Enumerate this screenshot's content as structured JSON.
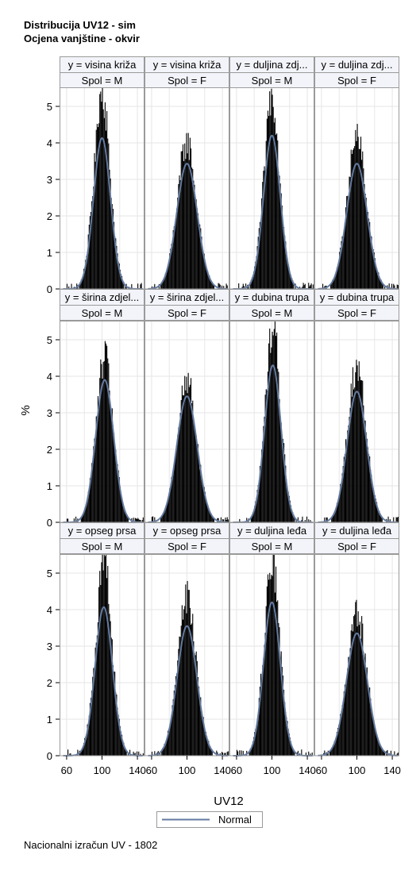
{
  "title": "Distribucija UV12 - sim",
  "subtitle": "Ocjena vanjštine - okvir",
  "footnote": "Nacionalni izračun UV - 1802",
  "chart_data": {
    "type": "histogram-panel",
    "xlabel": "UV12",
    "ylabel": "%",
    "xlim": [
      52,
      148
    ],
    "ylim": [
      0,
      5.5
    ],
    "xticks": [
      60,
      100,
      140
    ],
    "yticks": [
      0,
      1,
      2,
      3,
      4,
      5
    ],
    "grid": true,
    "legend": {
      "entries": [
        "Normal"
      ],
      "position": "bottom"
    },
    "colors": {
      "histogram": "#000000",
      "normal_curve": "#637aa0",
      "grid": "#e6e6e6",
      "frame": "#9a9a9a",
      "header_bg": "#f2f4f9"
    },
    "column_header_label": "Spol",
    "panels": [
      {
        "trait": "y = visina križa",
        "spol": "Spol = M",
        "mean": 100,
        "sd": 9.6,
        "peak_pct": 5.4,
        "normal_peak_pct": 4.13
      },
      {
        "trait": "y = visina križa",
        "spol": "Spol = F",
        "mean": 100,
        "sd": 11.6,
        "peak_pct": 4.0,
        "normal_peak_pct": 3.43
      },
      {
        "trait": "y = duljina zdj...",
        "spol": "Spol = M",
        "mean": 100,
        "sd": 9.5,
        "peak_pct": 5.3,
        "normal_peak_pct": 4.2
      },
      {
        "trait": "y = duljina zdj...",
        "spol": "Spol = F",
        "mean": 100,
        "sd": 11.6,
        "peak_pct": 4.1,
        "normal_peak_pct": 3.43
      },
      {
        "trait": "y = širina zdjel...",
        "spol": "Spol = M",
        "mean": 103,
        "sd": 10.2,
        "peak_pct": 4.5,
        "normal_peak_pct": 3.9
      },
      {
        "trait": "y = širina zdjel...",
        "spol": "Spol = F",
        "mean": 100,
        "sd": 11.6,
        "peak_pct": 3.9,
        "normal_peak_pct": 3.45
      },
      {
        "trait": "y = dubina trupa",
        "spol": "Spol = M",
        "mean": 101,
        "sd": 9.3,
        "peak_pct": 5.3,
        "normal_peak_pct": 4.3
      },
      {
        "trait": "y = dubina trupa",
        "spol": "Spol = F",
        "mean": 100,
        "sd": 11.1,
        "peak_pct": 4.25,
        "normal_peak_pct": 3.58
      },
      {
        "trait": "y = opseg prsa",
        "spol": "Spol = M",
        "mean": 102,
        "sd": 9.8,
        "peak_pct": 5.25,
        "normal_peak_pct": 4.07
      },
      {
        "trait": "y = opseg prsa",
        "spol": "Spol = F",
        "mean": 100,
        "sd": 11.2,
        "peak_pct": 4.35,
        "normal_peak_pct": 3.55
      },
      {
        "trait": "y = duljina leđa",
        "spol": "Spol = M",
        "mean": 100,
        "sd": 9.5,
        "peak_pct": 5.3,
        "normal_peak_pct": 4.2
      },
      {
        "trait": "y = duljina leđa",
        "spol": "Spol = F",
        "mean": 100,
        "sd": 11.9,
        "peak_pct": 3.85,
        "normal_peak_pct": 3.35
      }
    ]
  }
}
